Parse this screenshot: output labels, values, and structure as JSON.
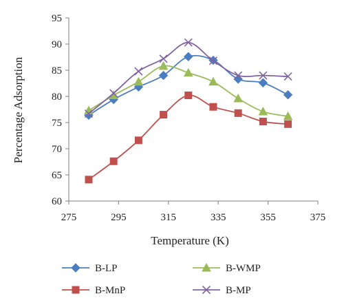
{
  "chart_data": {
    "type": "line",
    "title": "",
    "xlabel": "Temperature (K)",
    "ylabel": "Percentage Adsorption",
    "xlim": [
      275,
      375
    ],
    "ylim": [
      60,
      95
    ],
    "xticks": [
      275,
      295,
      315,
      335,
      355,
      375
    ],
    "yticks": [
      60,
      65,
      70,
      75,
      80,
      85,
      90,
      95
    ],
    "grid": false,
    "legend_position": "bottom",
    "x": [
      283,
      293,
      303,
      313,
      323,
      333,
      343,
      353,
      363
    ],
    "series": [
      {
        "name": "B-LP",
        "marker": "diamond",
        "color": "#4a7ec1",
        "values": [
          76.4,
          79.4,
          81.8,
          84.0,
          87.6,
          86.9,
          83.3,
          82.6,
          80.3
        ]
      },
      {
        "name": "B-WMP",
        "marker": "triangle",
        "color": "#9bbb59",
        "values": [
          77.3,
          80.2,
          82.8,
          85.8,
          84.5,
          82.8,
          79.6,
          77.1,
          76.2
        ]
      },
      {
        "name": "B-MnP",
        "marker": "square",
        "color": "#c0504d",
        "values": [
          64.1,
          67.6,
          71.6,
          76.5,
          80.2,
          78.0,
          76.8,
          75.2,
          74.7
        ]
      },
      {
        "name": "B-MP",
        "marker": "x",
        "color": "#8064a2",
        "values": [
          76.7,
          80.6,
          84.8,
          87.2,
          90.3,
          86.8,
          84.0,
          84.0,
          83.8
        ]
      }
    ]
  }
}
